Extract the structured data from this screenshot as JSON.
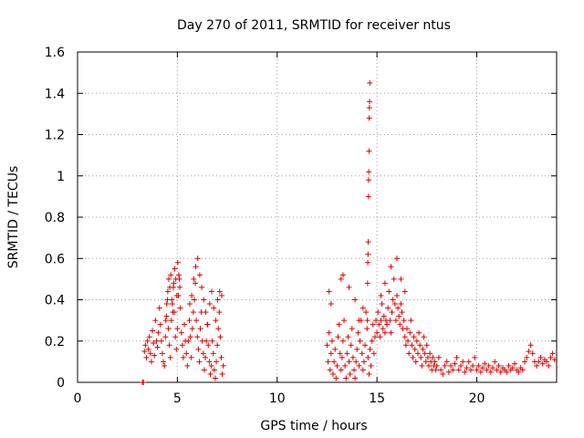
{
  "chart_data": {
    "type": "scatter",
    "title": "Day 270 of 2011, SRMTID for receiver ntus",
    "xlabel": "GPS time / hours",
    "ylabel": "SRMTID / TECUs",
    "xlim": [
      0,
      24
    ],
    "ylim": [
      0,
      1.6
    ],
    "xticks": [
      0,
      5,
      10,
      15,
      20
    ],
    "yticks": [
      0,
      0.2,
      0.4,
      0.6,
      0.8,
      1,
      1.2,
      1.4,
      1.6
    ],
    "xtick_labels": [
      "0",
      "5",
      "10",
      "15",
      "20"
    ],
    "ytick_labels": [
      "0",
      "0.2",
      "0.4",
      "0.6",
      "0.8",
      "1",
      "1.2",
      "1.4",
      "1.6"
    ],
    "grid": true,
    "marker": "plus",
    "color": "#e00000",
    "series": [
      {
        "name": "SRMTID",
        "x": [
          3.25,
          3.3,
          3.35,
          3.4,
          3.45,
          3.5,
          3.55,
          3.6,
          3.65,
          3.7,
          3.75,
          3.8,
          3.85,
          3.9,
          3.95,
          4.0,
          4.05,
          4.1,
          4.15,
          4.2,
          4.25,
          4.3,
          4.35,
          4.4,
          4.45,
          4.5,
          4.55,
          4.6,
          4.65,
          4.7,
          4.75,
          4.8,
          4.85,
          4.9,
          4.95,
          5.0,
          5.05,
          5.1,
          5.15,
          5.2,
          5.25,
          5.3,
          5.35,
          5.4,
          5.45,
          5.5,
          5.55,
          5.6,
          5.65,
          5.7,
          5.75,
          5.8,
          5.85,
          5.9,
          5.95,
          6.0,
          6.05,
          6.1,
          6.15,
          6.2,
          6.25,
          6.3,
          6.35,
          6.4,
          6.45,
          6.5,
          6.55,
          6.6,
          6.65,
          6.7,
          6.75,
          6.8,
          6.85,
          6.9,
          6.95,
          7.0,
          7.05,
          7.1,
          7.15,
          7.2,
          7.25,
          7.3,
          4.42,
          4.47,
          4.52,
          4.57,
          4.62,
          4.67,
          4.72,
          4.77,
          4.82,
          4.87,
          4.92,
          4.97,
          5.02,
          5.07,
          5.12,
          5.62,
          5.72,
          5.82,
          5.92,
          6.02,
          6.12,
          6.22,
          6.32,
          6.42,
          6.52,
          6.62,
          6.72,
          6.82,
          6.92,
          7.02,
          7.12,
          7.22,
          12.5,
          12.55,
          12.6,
          12.65,
          12.7,
          12.75,
          12.8,
          12.85,
          12.9,
          12.95,
          13.0,
          13.05,
          13.1,
          13.15,
          13.2,
          13.25,
          13.3,
          13.35,
          13.4,
          13.45,
          13.5,
          13.55,
          13.6,
          13.65,
          13.7,
          13.75,
          13.8,
          13.85,
          13.9,
          13.95,
          14.0,
          14.05,
          14.1,
          14.15,
          14.2,
          14.25,
          14.3,
          14.35,
          14.4,
          14.45,
          14.5,
          14.55,
          14.6,
          14.65,
          14.7,
          14.75,
          14.8,
          14.85,
          14.9,
          14.95,
          15.0,
          15.05,
          15.1,
          15.15,
          15.2,
          15.25,
          15.3,
          15.35,
          15.4,
          15.45,
          15.5,
          15.55,
          15.6,
          15.65,
          15.7,
          15.75,
          15.8,
          15.85,
          15.9,
          15.95,
          16.0,
          16.05,
          16.1,
          16.15,
          16.2,
          16.25,
          16.3,
          16.35,
          16.4,
          16.45,
          16.5,
          16.55,
          16.6,
          16.65,
          16.7,
          16.75,
          16.8,
          16.85,
          16.9,
          16.95,
          17.0,
          17.05,
          17.1,
          17.15,
          17.2,
          17.25,
          17.3,
          17.35,
          17.4,
          17.45,
          17.5,
          17.55,
          17.6,
          17.65,
          17.7,
          17.75,
          17.8,
          17.85,
          17.9,
          17.95,
          18.0,
          18.1,
          18.2,
          18.3,
          18.4,
          18.5,
          18.6,
          18.7,
          18.8,
          18.9,
          19.0,
          19.1,
          19.2,
          19.3,
          19.4,
          19.5,
          19.6,
          19.7,
          19.8,
          19.9,
          20.0,
          20.1,
          20.2,
          20.3,
          20.4,
          20.5,
          20.6,
          20.7,
          20.8,
          20.9,
          21.0,
          21.1,
          21.2,
          21.3,
          21.4,
          21.5,
          21.6,
          21.7,
          21.8,
          21.9,
          22.0,
          22.1,
          22.2,
          22.3,
          22.4,
          22.5,
          22.6,
          22.7,
          22.8,
          22.9,
          23.0,
          23.1,
          23.2,
          23.3,
          23.4,
          23.5,
          23.6,
          23.7,
          23.8,
          23.9,
          14.52,
          14.53,
          14.54,
          14.55,
          14.56,
          14.57,
          14.58,
          14.59,
          14.6,
          14.61,
          14.62,
          14.63,
          14.64,
          12.6,
          12.7,
          13.2,
          13.3,
          13.6,
          13.9,
          14.1,
          14.3,
          15.2,
          15.4,
          15.7,
          16.0,
          16.2,
          16.4
        ],
        "y": [
          0.0,
          0.0,
          0.15,
          0.18,
          0.12,
          0.2,
          0.16,
          0.22,
          0.14,
          0.1,
          0.25,
          0.19,
          0.13,
          0.3,
          0.2,
          0.17,
          0.24,
          0.36,
          0.28,
          0.2,
          0.14,
          0.1,
          0.08,
          0.22,
          0.32,
          0.4,
          0.26,
          0.18,
          0.12,
          0.3,
          0.38,
          0.46,
          0.34,
          0.22,
          0.16,
          0.26,
          0.42,
          0.5,
          0.36,
          0.24,
          0.18,
          0.12,
          0.28,
          0.2,
          0.14,
          0.08,
          0.2,
          0.3,
          0.22,
          0.12,
          0.26,
          0.34,
          0.4,
          0.48,
          0.3,
          0.22,
          0.16,
          0.1,
          0.26,
          0.34,
          0.2,
          0.14,
          0.06,
          0.12,
          0.2,
          0.28,
          0.18,
          0.1,
          0.04,
          0.08,
          0.2,
          0.14,
          0.06,
          0.02,
          0.1,
          0.18,
          0.26,
          0.34,
          0.22,
          0.12,
          0.04,
          0.08,
          0.3,
          0.38,
          0.44,
          0.5,
          0.46,
          0.52,
          0.4,
          0.34,
          0.48,
          0.55,
          0.5,
          0.42,
          0.58,
          0.52,
          0.46,
          0.38,
          0.42,
          0.5,
          0.56,
          0.6,
          0.52,
          0.46,
          0.4,
          0.34,
          0.28,
          0.38,
          0.44,
          0.36,
          0.3,
          0.4,
          0.44,
          0.42,
          0.18,
          0.1,
          0.24,
          0.06,
          0.14,
          0.2,
          0.04,
          0.1,
          0.16,
          0.02,
          0.08,
          0.22,
          0.28,
          0.14,
          0.06,
          0.12,
          0.2,
          0.3,
          0.08,
          0.02,
          0.14,
          0.22,
          0.1,
          0.04,
          0.18,
          0.26,
          0.12,
          0.06,
          0.02,
          0.1,
          0.16,
          0.24,
          0.08,
          0.2,
          0.3,
          0.14,
          0.06,
          0.1,
          0.18,
          0.34,
          0.26,
          0.12,
          0.04,
          0.16,
          0.08,
          0.2,
          0.28,
          0.14,
          0.22,
          0.3,
          0.24,
          0.34,
          0.28,
          0.22,
          0.3,
          0.38,
          0.26,
          0.32,
          0.24,
          0.3,
          0.28,
          0.36,
          0.44,
          0.3,
          0.24,
          0.34,
          0.4,
          0.5,
          0.38,
          0.3,
          0.42,
          0.36,
          0.32,
          0.28,
          0.38,
          0.34,
          0.26,
          0.3,
          0.22,
          0.18,
          0.26,
          0.2,
          0.14,
          0.24,
          0.3,
          0.18,
          0.12,
          0.22,
          0.16,
          0.1,
          0.2,
          0.14,
          0.24,
          0.18,
          0.12,
          0.08,
          0.16,
          0.22,
          0.14,
          0.1,
          0.18,
          0.12,
          0.08,
          0.14,
          0.1,
          0.06,
          0.12,
          0.08,
          0.1,
          0.06,
          0.08,
          0.12,
          0.06,
          0.04,
          0.08,
          0.1,
          0.05,
          0.08,
          0.06,
          0.09,
          0.12,
          0.06,
          0.08,
          0.1,
          0.05,
          0.07,
          0.1,
          0.06,
          0.08,
          0.12,
          0.06,
          0.08,
          0.05,
          0.07,
          0.09,
          0.06,
          0.08,
          0.05,
          0.07,
          0.1,
          0.06,
          0.08,
          0.05,
          0.07,
          0.06,
          0.05,
          0.08,
          0.06,
          0.07,
          0.09,
          0.06,
          0.05,
          0.07,
          0.06,
          0.1,
          0.12,
          0.15,
          0.18,
          0.14,
          0.1,
          0.08,
          0.1,
          0.12,
          0.09,
          0.11,
          0.1,
          0.08,
          0.12,
          0.14,
          0.11,
          0.3,
          0.48,
          0.58,
          0.62,
          0.68,
          0.9,
          0.98,
          1.02,
          1.12,
          1.28,
          1.33,
          1.36,
          1.45,
          0.44,
          0.38,
          0.5,
          0.52,
          0.46,
          0.4,
          0.3,
          0.36,
          0.42,
          0.48,
          0.56,
          0.6,
          0.5,
          0.44
        ]
      }
    ]
  }
}
